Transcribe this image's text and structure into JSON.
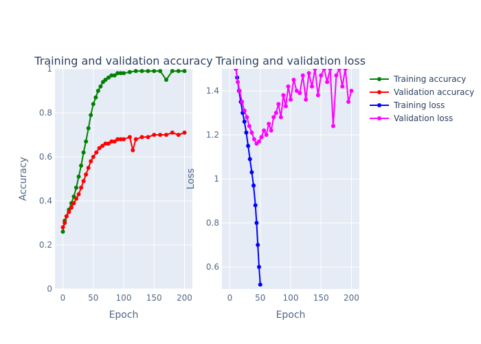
{
  "chart_data": [
    {
      "type": "line",
      "title": "Training and validation accuracy",
      "xlabel": "Epoch",
      "ylabel": "Accuracy",
      "xlim": [
        -13,
        213
      ],
      "ylim": [
        0,
        1
      ],
      "xticks": [
        0,
        50,
        100,
        150,
        200
      ],
      "yticks": [
        0,
        0.2,
        0.4,
        0.6,
        0.8,
        1
      ],
      "ytick_labels": [
        "0",
        "0.2",
        "0.4",
        "0.6",
        "0.8",
        "1"
      ],
      "grid": true,
      "series": [
        {
          "name": "Training accuracy",
          "color": "#008000",
          "x": [
            0,
            3,
            6,
            10,
            14,
            18,
            22,
            26,
            30,
            34,
            38,
            42,
            46,
            50,
            54,
            58,
            62,
            66,
            70,
            75,
            80,
            85,
            90,
            95,
            100,
            110,
            120,
            130,
            140,
            150,
            160,
            170,
            180,
            190,
            200
          ],
          "y": [
            0.26,
            0.31,
            0.33,
            0.36,
            0.39,
            0.42,
            0.46,
            0.51,
            0.56,
            0.62,
            0.67,
            0.73,
            0.79,
            0.84,
            0.87,
            0.9,
            0.92,
            0.94,
            0.95,
            0.96,
            0.97,
            0.97,
            0.98,
            0.98,
            0.98,
            0.985,
            0.99,
            0.99,
            0.99,
            0.99,
            0.99,
            0.95,
            0.99,
            0.99,
            0.99
          ]
        },
        {
          "name": "Validation accuracy",
          "color": "#ff0000",
          "x": [
            0,
            3,
            6,
            10,
            14,
            18,
            22,
            26,
            30,
            34,
            38,
            42,
            46,
            50,
            55,
            60,
            65,
            70,
            75,
            80,
            85,
            90,
            95,
            100,
            110,
            115,
            120,
            130,
            140,
            150,
            160,
            170,
            180,
            190,
            200
          ],
          "y": [
            0.28,
            0.3,
            0.33,
            0.35,
            0.37,
            0.39,
            0.41,
            0.43,
            0.46,
            0.49,
            0.52,
            0.55,
            0.58,
            0.6,
            0.62,
            0.64,
            0.65,
            0.66,
            0.66,
            0.67,
            0.67,
            0.68,
            0.68,
            0.68,
            0.69,
            0.63,
            0.68,
            0.69,
            0.69,
            0.7,
            0.7,
            0.7,
            0.71,
            0.7,
            0.71
          ]
        }
      ]
    },
    {
      "type": "line",
      "title": "Training and validation loss",
      "xlabel": "Epoch",
      "ylabel": "Loss",
      "xlim": [
        -13,
        213
      ],
      "ylim": [
        0.5,
        1.5
      ],
      "xticks": [
        0,
        50,
        100,
        150,
        200
      ],
      "yticks": [
        0.6,
        0.8,
        1,
        1.2,
        1.4
      ],
      "ytick_labels": [
        "0.6",
        "0.8",
        "1",
        "1.2",
        "1.4"
      ],
      "grid": true,
      "series": [
        {
          "name": "Training loss",
          "color": "#0000ff",
          "x": [
            10,
            12,
            15,
            18,
            21,
            24,
            27,
            30,
            33,
            36,
            39,
            42,
            44,
            46,
            48,
            50
          ],
          "y": [
            1.5,
            1.46,
            1.4,
            1.35,
            1.3,
            1.26,
            1.21,
            1.15,
            1.09,
            1.03,
            0.97,
            0.88,
            0.8,
            0.7,
            0.6,
            0.52
          ]
        },
        {
          "name": "Validation loss",
          "color": "#ff00ff",
          "x": [
            10,
            13,
            16,
            20,
            24,
            28,
            32,
            36,
            40,
            44,
            48,
            52,
            56,
            60,
            64,
            68,
            72,
            76,
            80,
            84,
            88,
            92,
            96,
            100,
            105,
            110,
            115,
            120,
            125,
            130,
            135,
            140,
            145,
            150,
            155,
            160,
            165,
            170,
            175,
            180,
            185,
            190,
            195,
            200
          ],
          "y": [
            1.5,
            1.44,
            1.4,
            1.35,
            1.31,
            1.28,
            1.24,
            1.21,
            1.18,
            1.16,
            1.17,
            1.19,
            1.22,
            1.2,
            1.25,
            1.22,
            1.28,
            1.3,
            1.34,
            1.28,
            1.38,
            1.33,
            1.42,
            1.36,
            1.45,
            1.4,
            1.39,
            1.47,
            1.36,
            1.48,
            1.42,
            1.5,
            1.38,
            1.47,
            1.5,
            1.44,
            1.5,
            1.24,
            1.47,
            1.5,
            1.42,
            1.5,
            1.35,
            1.4
          ]
        }
      ]
    }
  ],
  "legend": {
    "placement": "right",
    "items": [
      {
        "label": "Training accuracy",
        "color": "#008000"
      },
      {
        "label": "Validation accuracy",
        "color": "#ff0000"
      },
      {
        "label": "Training loss",
        "color": "#0000ff"
      },
      {
        "label": "Validation loss",
        "color": "#ff00ff"
      }
    ]
  }
}
